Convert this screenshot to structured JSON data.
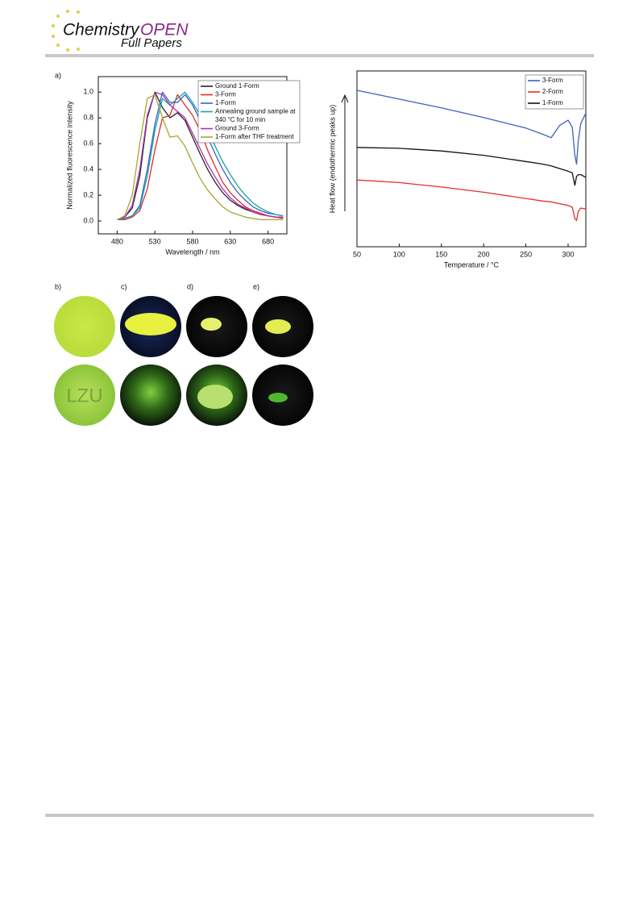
{
  "header": {
    "journal_left": "Chemistry",
    "journal_right": "OPEN",
    "section": "Full Papers"
  },
  "panel_labels": [
    "a)",
    "b)",
    "c)",
    "d)",
    "e)"
  ],
  "photo_text": "LZU",
  "chart_data": [
    {
      "type": "line",
      "x_label": "Wavelength / nm",
      "y_label": "Normalized fluorescence intensity",
      "x": [
        480,
        490,
        500,
        510,
        520,
        530,
        540,
        550,
        560,
        570,
        580,
        590,
        600,
        610,
        620,
        630,
        640,
        650,
        660,
        670,
        680,
        690,
        700
      ],
      "xlim": [
        455,
        705
      ],
      "xticks": [
        480,
        530,
        580,
        630,
        680
      ],
      "ylim": [
        -0.1,
        1.12
      ],
      "yticks": [
        {
          "value": 0,
          "label": "0.0"
        },
        0.2,
        0.4,
        0.6,
        0.8,
        {
          "value": 1,
          "label": "1.0"
        }
      ],
      "legend": "upper right",
      "series": [
        {
          "name": "Ground 1-Form",
          "color": "#222222",
          "values": [
            0.01,
            0.03,
            0.1,
            0.35,
            0.8,
            1.0,
            0.88,
            0.8,
            0.84,
            0.78,
            0.65,
            0.52,
            0.4,
            0.3,
            0.22,
            0.16,
            0.12,
            0.09,
            0.07,
            0.05,
            0.04,
            0.03,
            0.03
          ]
        },
        {
          "name": "3-Form",
          "color": "#e02a2a",
          "values": [
            0.01,
            0.01,
            0.03,
            0.08,
            0.25,
            0.55,
            0.8,
            0.82,
            0.98,
            0.9,
            0.82,
            0.7,
            0.55,
            0.42,
            0.3,
            0.22,
            0.16,
            0.11,
            0.08,
            0.06,
            0.04,
            0.03,
            0.02
          ]
        },
        {
          "name": "1-Form",
          "color": "#3a5fc8",
          "values": [
            0.01,
            0.02,
            0.04,
            0.12,
            0.4,
            0.75,
            1.0,
            0.92,
            0.92,
            0.98,
            0.9,
            0.78,
            0.65,
            0.52,
            0.4,
            0.3,
            0.22,
            0.16,
            0.11,
            0.08,
            0.06,
            0.05,
            0.04
          ]
        },
        {
          "name": "Annealing ground sample at 340 °C for 10 min",
          "color": "#1aa3a8",
          "values": [
            0.01,
            0.02,
            0.04,
            0.1,
            0.35,
            0.7,
            0.95,
            0.9,
            0.95,
            1.0,
            0.92,
            0.82,
            0.7,
            0.58,
            0.46,
            0.36,
            0.27,
            0.2,
            0.14,
            0.1,
            0.07,
            0.05,
            0.04
          ]
        },
        {
          "name": "Ground 3-Form",
          "color": "#b02fb0",
          "values": [
            0.01,
            0.03,
            0.12,
            0.4,
            0.82,
            1.0,
            0.98,
            0.9,
            0.85,
            0.8,
            0.68,
            0.56,
            0.44,
            0.34,
            0.25,
            0.18,
            0.13,
            0.1,
            0.07,
            0.05,
            0.04,
            0.03,
            0.03
          ]
        },
        {
          "name": "1-Form after THF treatment",
          "color": "#a6a631",
          "values": [
            0.01,
            0.04,
            0.2,
            0.6,
            0.95,
            0.98,
            0.8,
            0.65,
            0.66,
            0.58,
            0.45,
            0.33,
            0.24,
            0.17,
            0.11,
            0.07,
            0.05,
            0.03,
            0.02,
            0.01,
            0.01,
            0.01,
            0.01
          ]
        }
      ]
    },
    {
      "type": "line",
      "x_label": "Temperature / °C",
      "y_label": "Heat flow (endothermic peaks up)",
      "x": [
        50,
        100,
        150,
        200,
        250,
        270,
        280,
        290,
        300,
        305,
        308,
        310,
        312,
        315,
        321
      ],
      "xlim": [
        50,
        321
      ],
      "xticks": [
        50,
        100,
        150,
        200,
        250,
        300
      ],
      "ylim": [
        0,
        10
      ],
      "legend": "upper right",
      "series": [
        {
          "name": "3-Form",
          "color": "#3a62c0",
          "values": [
            8.9,
            8.4,
            7.9,
            7.35,
            6.75,
            6.4,
            6.2,
            6.9,
            7.2,
            6.8,
            5.2,
            4.7,
            6.0,
            7.0,
            7.6
          ]
        },
        {
          "name": "2-Form",
          "color": "#e0302a",
          "values": [
            3.8,
            3.65,
            3.4,
            3.1,
            2.75,
            2.6,
            2.55,
            2.45,
            2.35,
            2.25,
            1.6,
            1.5,
            2.0,
            2.2,
            2.15
          ]
        },
        {
          "name": "1-Form",
          "color": "#111111",
          "values": [
            5.65,
            5.6,
            5.45,
            5.2,
            4.85,
            4.7,
            4.6,
            4.45,
            4.3,
            4.2,
            3.5,
            4.0,
            4.1,
            4.1,
            3.95
          ]
        }
      ]
    }
  ]
}
